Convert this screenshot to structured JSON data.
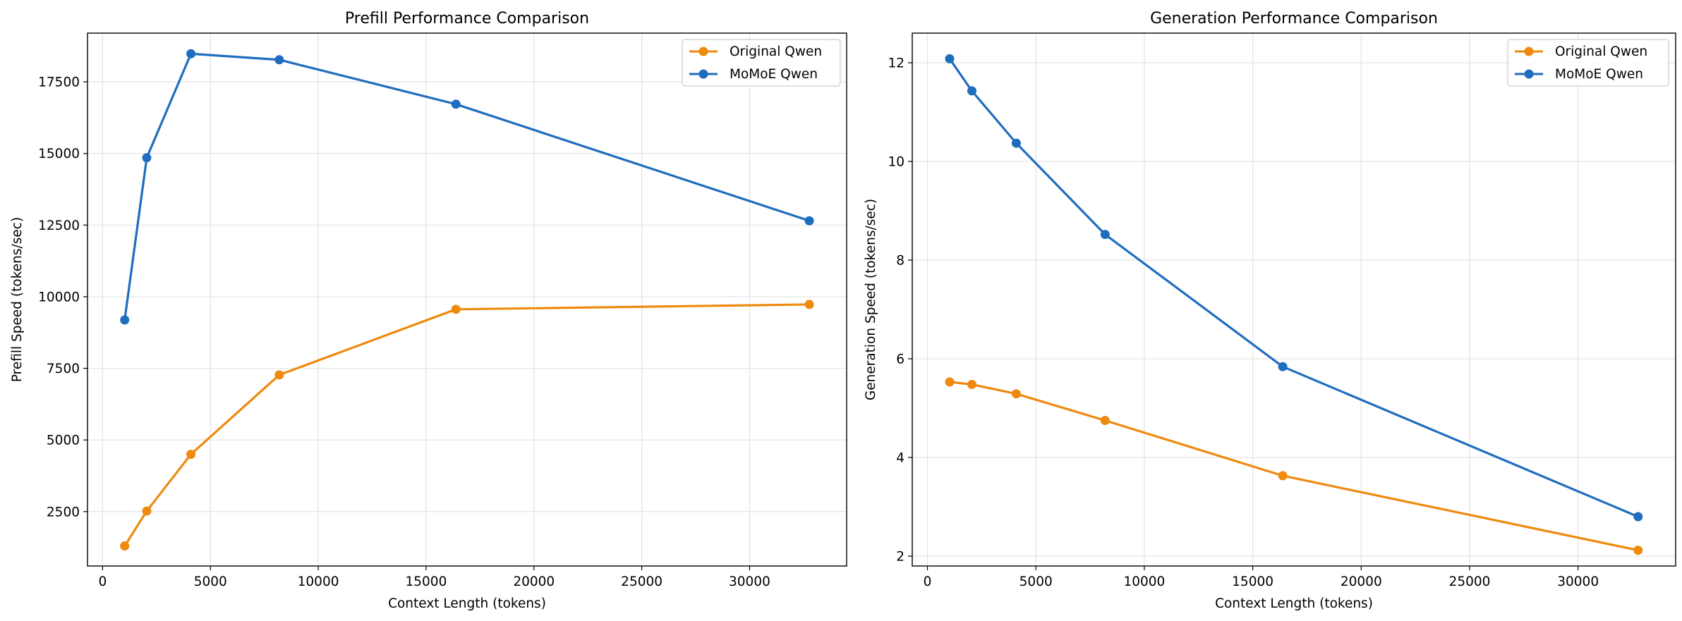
{
  "colors": {
    "original": "#ee8a0e",
    "momoe": "#1f6dbf",
    "grid": "#e3e3e3",
    "frame": "#000000"
  },
  "chart_data": [
    {
      "type": "line",
      "title": "Prefill Performance Comparison",
      "xlabel": "Context Length (tokens)",
      "ylabel": "Prefill Speed (tokens/sec)",
      "x": [
        1024,
        2048,
        4096,
        8192,
        16384,
        32768
      ],
      "xlim": [
        -700,
        34500
      ],
      "ylim": [
        600,
        19200
      ],
      "xticks": [
        0,
        5000,
        10000,
        15000,
        20000,
        25000,
        30000
      ],
      "yticks": [
        2500,
        5000,
        7500,
        10000,
        12500,
        15000,
        17500
      ],
      "grid": true,
      "legend_position": "top-right",
      "series": [
        {
          "name": "Original Qwen",
          "color_key": "original",
          "values": [
            1300,
            2520,
            4500,
            7270,
            9560,
            9730
          ]
        },
        {
          "name": "MoMoE Qwen",
          "color_key": "momoe",
          "values": [
            9190,
            14850,
            18480,
            18270,
            16720,
            12650
          ]
        }
      ]
    },
    {
      "type": "line",
      "title": "Generation Performance Comparison",
      "xlabel": "Context Length (tokens)",
      "ylabel": "Generation Speed (tokens/sec)",
      "x": [
        1024,
        2048,
        4096,
        8192,
        16384,
        32768
      ],
      "xlim": [
        -700,
        34500
      ],
      "ylim": [
        1.8,
        12.6
      ],
      "xticks": [
        0,
        5000,
        10000,
        15000,
        20000,
        25000,
        30000
      ],
      "yticks": [
        2,
        4,
        6,
        8,
        10,
        12
      ],
      "grid": true,
      "legend_position": "top-right",
      "series": [
        {
          "name": "Original Qwen",
          "color_key": "original",
          "values": [
            5.53,
            5.48,
            5.29,
            4.75,
            3.63,
            2.12
          ]
        },
        {
          "name": "MoMoE Qwen",
          "color_key": "momoe",
          "values": [
            12.08,
            11.43,
            10.37,
            8.52,
            5.84,
            2.8
          ]
        }
      ]
    }
  ]
}
